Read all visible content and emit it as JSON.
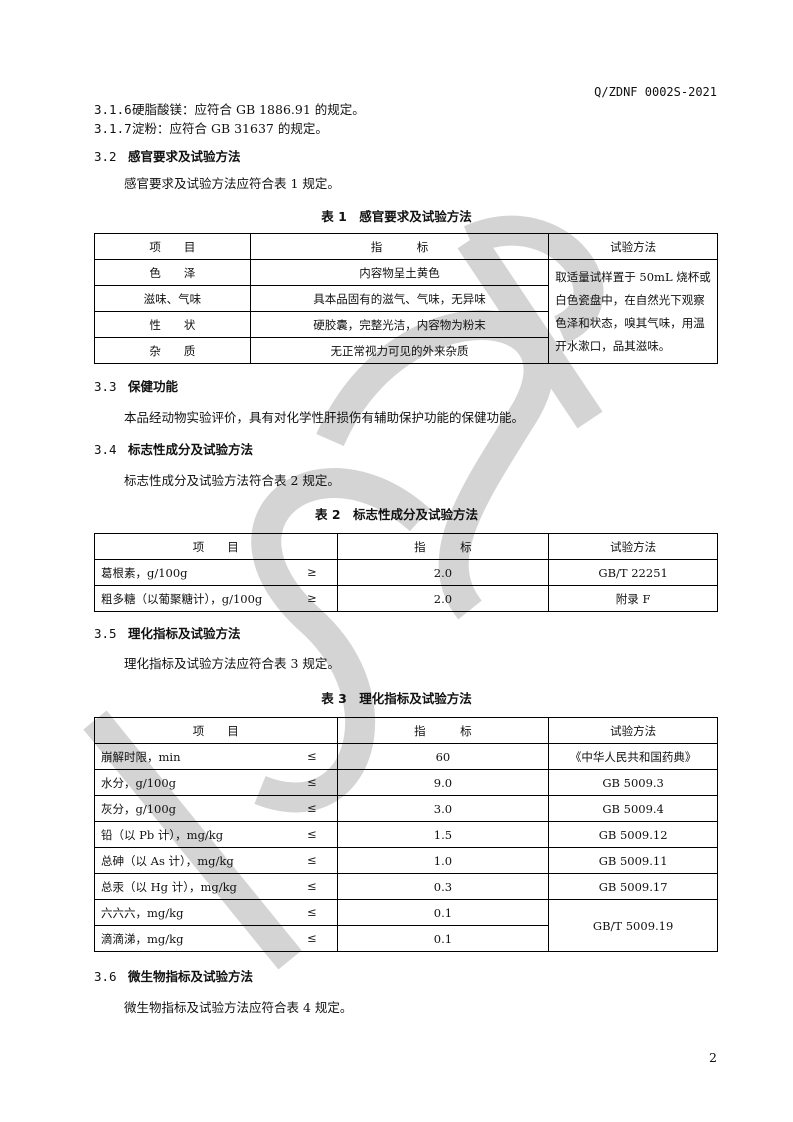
{
  "header": {
    "doc_code": "Q/ZDNF 0002S-2021"
  },
  "watermark": "JSQB",
  "clauses": [
    {
      "num": "3.1.6",
      "text": "硬脂酸镁：应符合 GB 1886.91 的规定。"
    },
    {
      "num": "3.1.7",
      "text": "淀粉：应符合 GB 31637 的规定。"
    }
  ],
  "s32": {
    "num": "3.2",
    "title": "感官要求及试验方法",
    "para": "感官要求及试验方法应符合表 1 规定。"
  },
  "table1": {
    "title": "表 1　感官要求及试验方法",
    "headers": [
      "项　　目",
      "指　　　标",
      "试验方法"
    ],
    "rows": [
      {
        "item": "色　　泽",
        "value": "内容物呈土黄色"
      },
      {
        "item": "滋味、气味",
        "value": "具本品固有的滋气、气味，无异味"
      },
      {
        "item": "性　　状",
        "value": "硬胶囊，完整光洁，内容物为粉末"
      },
      {
        "item": "杂　　质",
        "value": "无正常视力可见的外来杂质"
      }
    ],
    "method": "取适量试样置于 50mL 烧杯或白色瓷盘中，在自然光下观察色泽和状态，嗅其气味，用温开水漱口，品其滋味。"
  },
  "s33": {
    "num": "3.3",
    "title": "保健功能",
    "para": "本品经动物实验评价，具有对化学性肝损伤有辅助保护功能的保健功能。"
  },
  "s34": {
    "num": "3.4",
    "title": "标志性成分及试验方法",
    "para": "标志性成分及试验方法符合表 2 规定。"
  },
  "table2": {
    "title": "表 2　标志性成分及试验方法",
    "headers": [
      "项　　目",
      "指　　　标",
      "试验方法"
    ],
    "rows": [
      {
        "item": "葛根素，g/100g",
        "sym": "≥",
        "value": "2.0",
        "method": "GB/T 22251"
      },
      {
        "item": "粗多糖（以葡聚糖计），g/100g",
        "sym": "≥",
        "value": "2.0",
        "method": "附录 F"
      }
    ]
  },
  "s35": {
    "num": "3.5",
    "title": "理化指标及试验方法",
    "para": "理化指标及试验方法应符合表 3 规定。"
  },
  "table3": {
    "title": "表 3　理化指标及试验方法",
    "headers": [
      "项　　目",
      "指　　　标",
      "试验方法"
    ],
    "rows": [
      {
        "item": "崩解时限，min",
        "sym": "≤",
        "value": "60",
        "method": "《中华人民共和国药典》"
      },
      {
        "item": "水分，g/100g",
        "sym": "≤",
        "value": "9.0",
        "method": "GB 5009.3"
      },
      {
        "item": "灰分，g/100g",
        "sym": "≤",
        "value": "3.0",
        "method": "GB 5009.4"
      },
      {
        "item": "铅（以 Pb 计），mg/kg",
        "sym": "≤",
        "value": "1.5",
        "method": "GB 5009.12"
      },
      {
        "item": "总砷（以 As 计），mg/kg",
        "sym": "≤",
        "value": "1.0",
        "method": "GB 5009.11"
      },
      {
        "item": "总汞（以 Hg 计），mg/kg",
        "sym": "≤",
        "value": "0.3",
        "method": "GB 5009.17"
      },
      {
        "item": "六六六，mg/kg",
        "sym": "≤",
        "value": "0.1",
        "method": "GB/T 5009.19"
      },
      {
        "item": "滴滴涕，mg/kg",
        "sym": "≤",
        "value": "0.1"
      }
    ]
  },
  "s36": {
    "num": "3.6",
    "title": "微生物指标及试验方法",
    "para": "微生物指标及试验方法应符合表 4 规定。"
  },
  "footer": {
    "page": "2"
  }
}
